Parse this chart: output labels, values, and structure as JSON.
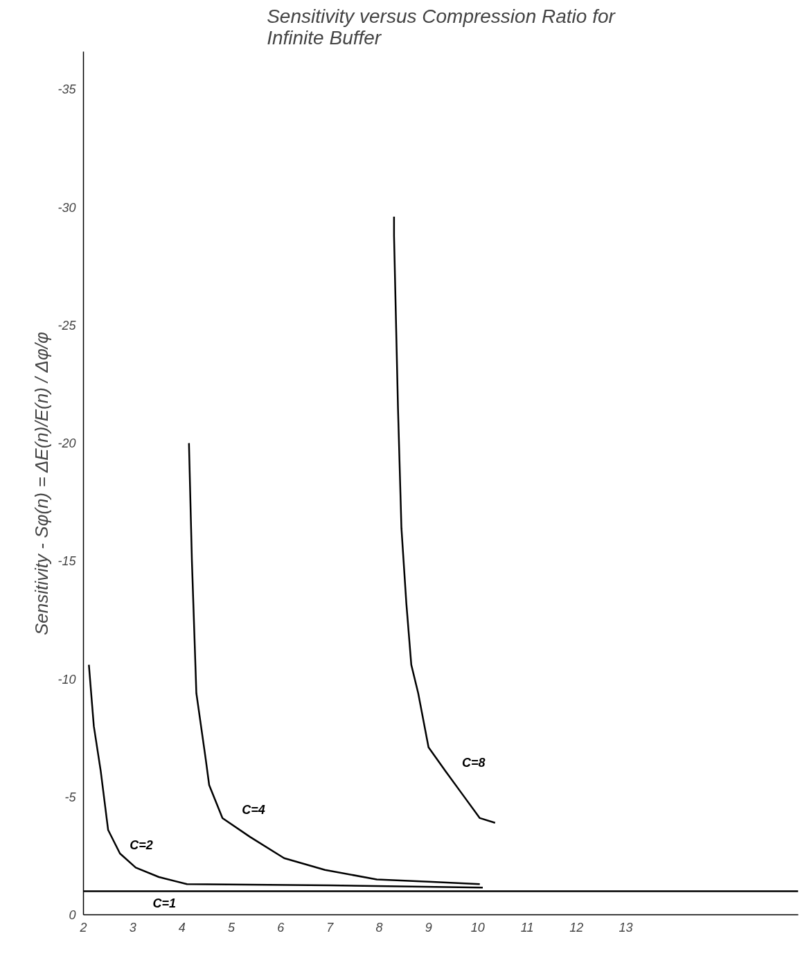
{
  "chart_data": {
    "type": "line",
    "title": "Sensitivity versus Compression Ratio for\nInfinite Buffer",
    "ylabel": "Sensitivity - Sφ(n) = ΔE(n)/E(n) / Δφ/φ",
    "xlim": [
      2,
      16.5
    ],
    "xticks": [
      2,
      3,
      4,
      5,
      6,
      7,
      8,
      9,
      10,
      11,
      12,
      13
    ],
    "ylim": [
      0,
      -36.6
    ],
    "yticks": [
      0,
      -5,
      -10,
      -15,
      -20,
      -25,
      -30,
      -35
    ],
    "grid": false,
    "marker": "none",
    "line_style": "solid",
    "series": [
      {
        "name": "C=1",
        "color": "#000000",
        "x": [
          2,
          16.5
        ],
        "values": [
          -1,
          -1
        ]
      },
      {
        "name": "C=2",
        "color": "#000000",
        "x": [
          2.11,
          2.21,
          2.35,
          2.5,
          2.74,
          3.06,
          3.53,
          4.1,
          7.0,
          10.1
        ],
        "values": [
          -10.6,
          -8.0,
          -6.1,
          -3.6,
          -2.6,
          -2.0,
          -1.6,
          -1.3,
          -1.25,
          -1.15
        ]
      },
      {
        "name": "C=4",
        "color": "#000000",
        "x": [
          4.14,
          4.2,
          4.29,
          4.48,
          4.55,
          4.82,
          5.38,
          6.07,
          6.9,
          7.95,
          9.0,
          10.04
        ],
        "values": [
          -20.0,
          -15.0,
          -9.4,
          -6.6,
          -5.5,
          -4.1,
          -3.3,
          -2.4,
          -1.9,
          -1.5,
          -1.4,
          -1.3
        ]
      },
      {
        "name": "C=8",
        "color": "#000000",
        "x": [
          8.3,
          8.3,
          8.38,
          8.45,
          8.55,
          8.65,
          8.79,
          9.0,
          9.34,
          9.69,
          10.04,
          10.35
        ],
        "values": [
          -29.6,
          -28.8,
          -21.5,
          -16.4,
          -13.2,
          -10.6,
          -9.4,
          -7.1,
          -6.1,
          -5.1,
          -4.1,
          -3.9
        ]
      }
    ]
  }
}
